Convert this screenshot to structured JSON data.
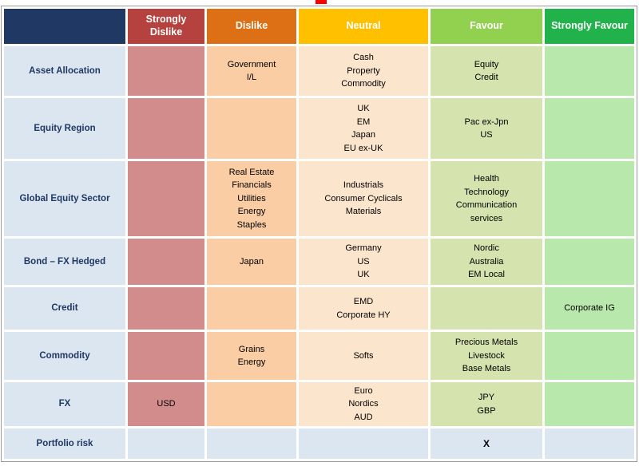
{
  "chart_data": {
    "type": "table",
    "legend_note": "color-coded preference matrix from strongly dislike (red) to strongly favour (green)",
    "columns": [
      {
        "id": "rowlabel",
        "label": "",
        "header_bg": "#1F3864",
        "header_fg": "#FFFFFF",
        "cell_bg": "#DCE6F1"
      },
      {
        "id": "strongly-dislike",
        "label": "Strongly Dislike",
        "header_bg": "#B6423F",
        "header_fg": "#FFFFFF",
        "cell_bg": "#D28C8C"
      },
      {
        "id": "dislike",
        "label": "Dislike",
        "header_bg": "#DD7015",
        "header_fg": "#FFFFFF",
        "cell_bg": "#FACDA5"
      },
      {
        "id": "neutral",
        "label": "Neutral",
        "header_bg": "#FFC000",
        "header_fg": "#FFFFFF",
        "cell_bg": "#FCE5CD"
      },
      {
        "id": "favour",
        "label": "Favour",
        "header_bg": "#92D050",
        "header_fg": "#FFFFFF",
        "cell_bg": "#D5E3AE"
      },
      {
        "id": "strongly-favour",
        "label": "Strongly Favour",
        "header_bg": "#21B24B",
        "header_fg": "#FFFFFF",
        "cell_bg": "#B9E8AC"
      }
    ],
    "rows": [
      {
        "label": "Asset Allocation",
        "cells": [
          "",
          "Government\nI/L",
          "Cash\nProperty\nCommodity",
          "Equity\nCredit",
          ""
        ]
      },
      {
        "label": "Equity Region",
        "cells": [
          "",
          "",
          "UK\nEM\nJapan\nEU ex-UK",
          "Pac ex-Jpn\nUS",
          ""
        ]
      },
      {
        "label": "Global Equity Sector",
        "cells": [
          "",
          "Real Estate\nFinancials\nUtilities\nEnergy\nStaples",
          "Industrials\nConsumer Cyclicals\nMaterials",
          "Health\nTechnology\nCommunication\nservices",
          ""
        ]
      },
      {
        "label": "Bond – FX Hedged",
        "cells": [
          "",
          "Japan",
          "Germany\nUS\nUK",
          "Nordic\nAustralia\nEM Local",
          ""
        ]
      },
      {
        "label": "Credit",
        "cells": [
          "",
          "",
          "EMD\nCorporate HY",
          "",
          "Corporate IG"
        ]
      },
      {
        "label": "Commodity",
        "cells": [
          "",
          "Grains\nEnergy",
          "Softs",
          "Precious Metals\nLivestock\nBase Metals",
          ""
        ]
      },
      {
        "label": "FX",
        "cells": [
          "USD",
          "",
          "Euro\nNordics\nAUD",
          "JPY\nGBP",
          ""
        ]
      },
      {
        "label": "Portfolio risk",
        "cells": [
          "",
          "",
          "",
          "X",
          ""
        ],
        "special": true
      }
    ]
  }
}
